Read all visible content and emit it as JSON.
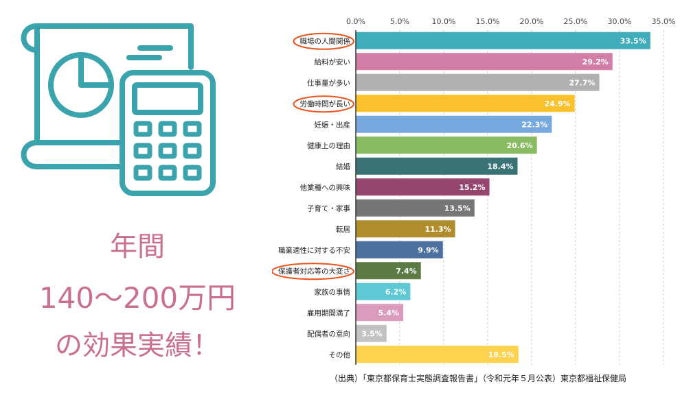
{
  "left": {
    "headline_1": "年間",
    "headline_2": "140～200万円",
    "headline_3": "の効果実績！",
    "icon": "calculator-and-chart-document-icon",
    "accent_color": "#3aa3ac",
    "headline_color": "#c9708f"
  },
  "chart_data": {
    "type": "bar",
    "orientation": "horizontal",
    "categories": [
      "職場の人間関係",
      "給料が安い",
      "仕事量が多い",
      "労働時間が長い",
      "妊娠・出産",
      "健康上の理由",
      "結婚",
      "他業種への興味",
      "子育て・家事",
      "転居",
      "職業適性に対する不安",
      "保護者対応等の大変さ",
      "家族の事情",
      "雇用期間満了",
      "配偶者の意向",
      "その他"
    ],
    "values": [
      33.5,
      29.2,
      27.7,
      24.9,
      22.3,
      20.6,
      18.4,
      15.2,
      13.5,
      11.3,
      9.9,
      7.4,
      6.2,
      5.4,
      3.5,
      18.5
    ],
    "value_labels": [
      "33.5%",
      "29.2%",
      "27.7%",
      "24.9%",
      "22.3%",
      "20.6%",
      "18.4%",
      "15.2%",
      "13.5%",
      "11.3%",
      "9.9%",
      "7.4%",
      "6.2%",
      "5.4%",
      "3.5%",
      "18.5%"
    ],
    "colors": [
      "#3fadba",
      "#d27ea7",
      "#b0b0b0",
      "#fbc12d",
      "#78a9de",
      "#88bc62",
      "#3a7376",
      "#94466e",
      "#767676",
      "#b08d2c",
      "#4b6f9f",
      "#5b7a44",
      "#5fc8d5",
      "#db9bbd",
      "#c2c2c2",
      "#fdd24f"
    ],
    "highlighted": [
      "職場の人間関係",
      "労働時間が長い",
      "保護者対応等の大変さ"
    ],
    "xlim": [
      0,
      35
    ],
    "xticks": [
      "0.0%",
      "5.0%",
      "10.0%",
      "15.0%",
      "20.0%",
      "25.0%",
      "30.0%",
      "35.0%"
    ],
    "xtick_values": [
      0,
      5,
      10,
      15,
      20,
      25,
      30,
      35
    ],
    "grid": "vertical dashed",
    "axis_position": "top",
    "highlight_color": "#e8541e"
  },
  "source": "（出典）「東京都保育士実態調査報告書」（令和元年５月公表）東京都福祉保健局"
}
